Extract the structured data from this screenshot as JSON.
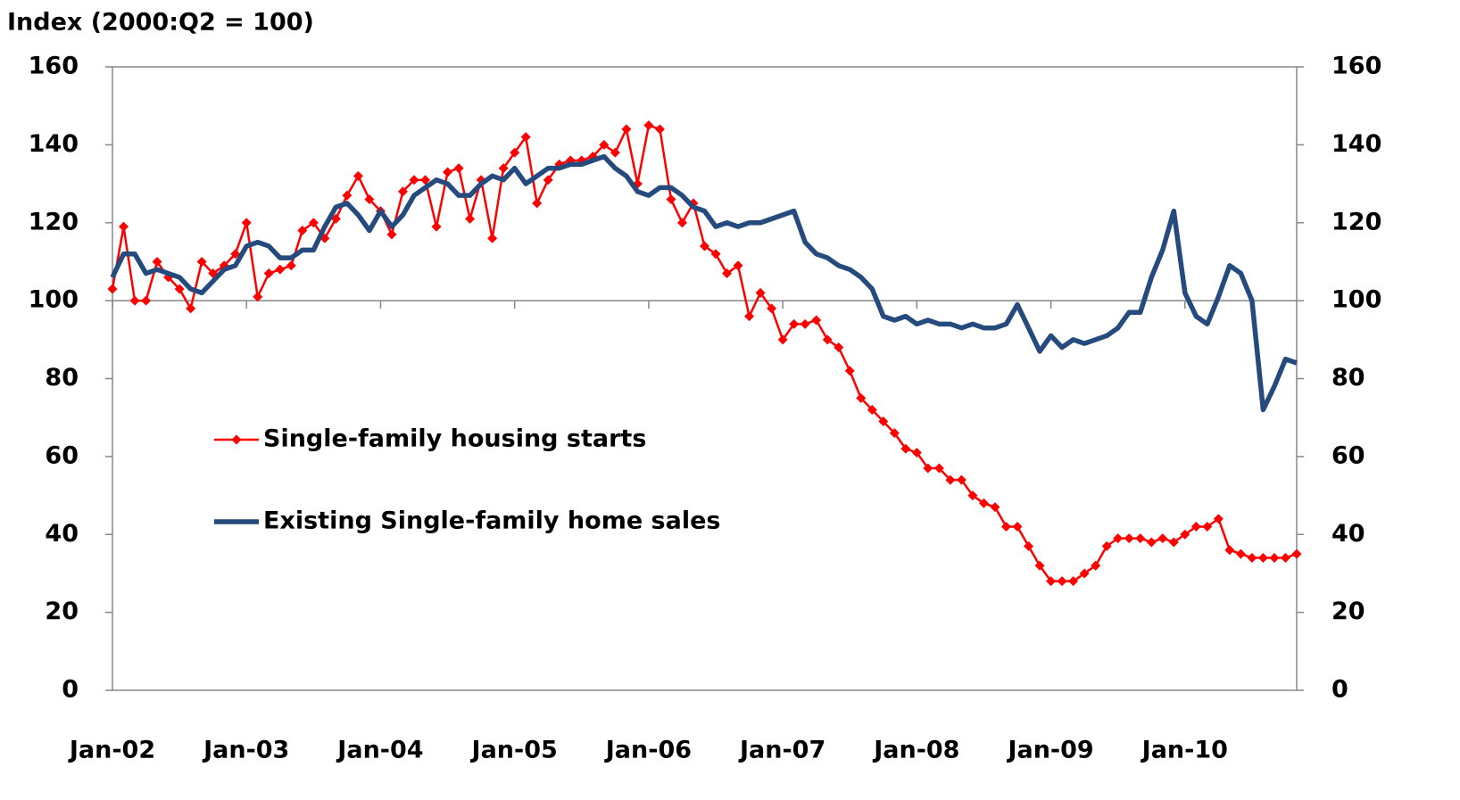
{
  "chart_data": {
    "type": "line",
    "title": "Index (2000:Q2 = 100)",
    "categories": [
      "Jan-02",
      null,
      null,
      null,
      null,
      null,
      null,
      null,
      null,
      null,
      null,
      null,
      "Jan-03",
      null,
      null,
      null,
      null,
      null,
      null,
      null,
      null,
      null,
      null,
      null,
      "Jan-04",
      null,
      null,
      null,
      null,
      null,
      null,
      null,
      null,
      null,
      null,
      null,
      "Jan-05",
      null,
      null,
      null,
      null,
      null,
      null,
      null,
      null,
      null,
      null,
      null,
      "Jan-06",
      null,
      null,
      null,
      null,
      null,
      null,
      null,
      null,
      null,
      null,
      null,
      "Jan-07",
      null,
      null,
      null,
      null,
      null,
      null,
      null,
      null,
      null,
      null,
      null,
      "Jan-08",
      null,
      null,
      null,
      null,
      null,
      null,
      null,
      null,
      null,
      null,
      null,
      "Jan-09",
      null,
      null,
      null,
      null,
      null,
      null,
      null,
      null,
      null,
      null,
      null,
      "Jan-10",
      null,
      null,
      null,
      null,
      null,
      null,
      null,
      null,
      null,
      null
    ],
    "series": [
      {
        "name": "Single-family housing starts",
        "color": "#ff0000",
        "marker": "diamond",
        "values": [
          103,
          119,
          100,
          100,
          110,
          106,
          103,
          98,
          110,
          107,
          109,
          112,
          120,
          101,
          107,
          108,
          109,
          118,
          120,
          116,
          121,
          127,
          132,
          126,
          123,
          117,
          128,
          131,
          131,
          119,
          133,
          134,
          121,
          131,
          116,
          134,
          138,
          142,
          125,
          131,
          135,
          136,
          136,
          137,
          140,
          138,
          144,
          130,
          145,
          144,
          126,
          120,
          125,
          114,
          112,
          107,
          109,
          96,
          102,
          98,
          90,
          94,
          94,
          95,
          90,
          88,
          82,
          75,
          72,
          69,
          66,
          62,
          61,
          57,
          57,
          54,
          54,
          50,
          48,
          47,
          42,
          42,
          37,
          32,
          28,
          28,
          28,
          30,
          32,
          37,
          39,
          39,
          39,
          38,
          39,
          38,
          40,
          42,
          42,
          44,
          36,
          35,
          34,
          34,
          34,
          34,
          35
        ]
      },
      {
        "name": "Existing Single-family home sales",
        "color": "#254a7e",
        "marker": "none",
        "values": [
          106,
          112,
          112,
          107,
          108,
          107,
          106,
          103,
          102,
          105,
          108,
          109,
          114,
          115,
          114,
          111,
          111,
          113,
          113,
          119,
          124,
          125,
          122,
          118,
          123,
          119,
          122,
          127,
          129,
          131,
          130,
          127,
          127,
          130,
          132,
          131,
          134,
          130,
          132,
          134,
          134,
          135,
          135,
          136,
          137,
          134,
          132,
          128,
          127,
          129,
          129,
          127,
          124,
          123,
          119,
          120,
          119,
          120,
          120,
          121,
          122,
          123,
          115,
          112,
          111,
          109,
          108,
          106,
          103,
          96,
          95,
          96,
          94,
          95,
          94,
          94,
          93,
          94,
          93,
          93,
          94,
          99,
          93,
          87,
          91,
          88,
          90,
          89,
          90,
          91,
          93,
          97,
          97,
          106,
          113,
          123,
          102,
          96,
          94,
          101,
          109,
          107,
          100,
          72,
          78,
          85,
          84
        ]
      }
    ],
    "ylim": [
      0,
      160
    ],
    "yticks": [
      0,
      20,
      40,
      60,
      80,
      100,
      120,
      140,
      160
    ],
    "y2lim": [
      0,
      160
    ],
    "y2ticks": [
      0,
      20,
      40,
      60,
      80,
      100,
      120,
      140,
      160
    ],
    "reference_line": 100,
    "grid": false,
    "legend_position": "center-left"
  }
}
